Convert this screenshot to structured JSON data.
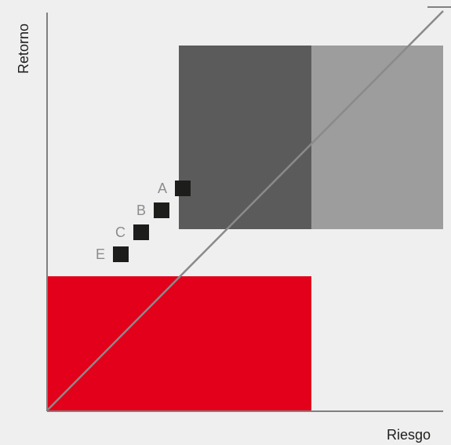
{
  "axes": {
    "x_label": "Riesgo",
    "y_label": "Retorno"
  },
  "colors": {
    "background": "#efeff0",
    "axis": "#808080",
    "diagonal": "#8a8a8a",
    "red_zone": "#e2001a",
    "dark_zone": "#5b5b5c",
    "light_zone": "#9d9d9d",
    "marker": "#1d1d1b",
    "label": "#8c8c8c",
    "text": "#1d1d1b"
  },
  "points": [
    {
      "label": "A"
    },
    {
      "label": "B"
    },
    {
      "label": "C"
    },
    {
      "label": "E"
    }
  ]
}
